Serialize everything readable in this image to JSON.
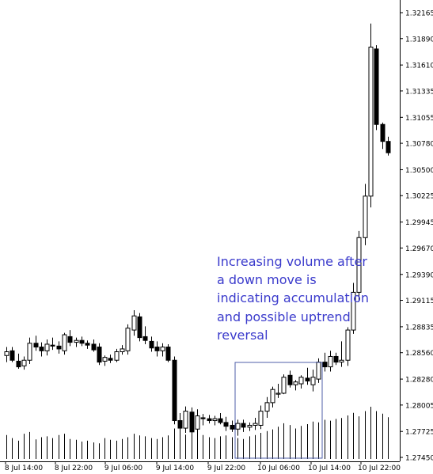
{
  "chart_data": {
    "type": "candlestick",
    "price_axis": {
      "ticks": [
        "1.32165",
        "1.31890",
        "1.31610",
        "1.31335",
        "1.31055",
        "1.30780",
        "1.30500",
        "1.30225",
        "1.29945",
        "1.29670",
        "1.29390",
        "1.29115",
        "1.28835",
        "1.28560",
        "1.28280",
        "1.28005",
        "1.27725",
        "1.27450"
      ],
      "range": [
        1.2745,
        1.32165
      ]
    },
    "time_axis": {
      "labels": [
        "8 Jul 14:00",
        "8 Jul 22:00",
        "9 Jul 06:00",
        "9 Jul 14:00",
        "9 Jul 22:00",
        "10 Jul 06:00",
        "10 Jul 14:00",
        "10 Jul 22:00"
      ]
    },
    "candles": [
      [
        1.2853,
        1.2862,
        1.2846,
        1.2857
      ],
      [
        1.2858,
        1.2862,
        1.2846,
        1.2848
      ],
      [
        1.2847,
        1.2855,
        1.2839,
        1.2841
      ],
      [
        1.2842,
        1.2852,
        1.2838,
        1.2848
      ],
      [
        1.2848,
        1.2872,
        1.2844,
        1.2866
      ],
      [
        1.2866,
        1.2874,
        1.2858,
        1.2862
      ],
      [
        1.2862,
        1.2867,
        1.2852,
        1.2858
      ],
      [
        1.2858,
        1.287,
        1.2853,
        1.2865
      ],
      [
        1.2864,
        1.2872,
        1.2859,
        1.2863
      ],
      [
        1.2863,
        1.2868,
        1.2855,
        1.286
      ],
      [
        1.2858,
        1.2877,
        1.2854,
        1.2875
      ],
      [
        1.2873,
        1.288,
        1.2863,
        1.2867
      ],
      [
        1.2867,
        1.2872,
        1.2862,
        1.2869
      ],
      [
        1.2869,
        1.2873,
        1.2863,
        1.2866
      ],
      [
        1.2866,
        1.2869,
        1.286,
        1.2864
      ],
      [
        1.2865,
        1.287,
        1.2857,
        1.2859
      ],
      [
        1.2862,
        1.2866,
        1.2843,
        1.2846
      ],
      [
        1.2847,
        1.2853,
        1.2842,
        1.2851
      ],
      [
        1.285,
        1.2854,
        1.2845,
        1.2848
      ],
      [
        1.2848,
        1.286,
        1.2846,
        1.2857
      ],
      [
        1.2857,
        1.2864,
        1.2854,
        1.286
      ],
      [
        1.2858,
        1.2886,
        1.2854,
        1.2882
      ],
      [
        1.288,
        1.2901,
        1.2874,
        1.2895
      ],
      [
        1.2894,
        1.2898,
        1.2868,
        1.2872
      ],
      [
        1.2873,
        1.2884,
        1.2865,
        1.2869
      ],
      [
        1.2868,
        1.2873,
        1.2857,
        1.2861
      ],
      [
        1.2862,
        1.2868,
        1.2852,
        1.2858
      ],
      [
        1.2858,
        1.2866,
        1.2852,
        1.2862
      ],
      [
        1.2862,
        1.2865,
        1.2846,
        1.2848
      ],
      [
        1.2848,
        1.2852,
        1.278,
        1.2784
      ],
      [
        1.2784,
        1.2792,
        1.277,
        1.2776
      ],
      [
        1.2776,
        1.2799,
        1.2771,
        1.2794
      ],
      [
        1.2793,
        1.2798,
        1.2763,
        1.2772
      ],
      [
        1.2775,
        1.2796,
        1.2768,
        1.2789
      ],
      [
        1.2787,
        1.2791,
        1.2779,
        1.2786
      ],
      [
        1.2786,
        1.279,
        1.2781,
        1.2784
      ],
      [
        1.2784,
        1.2789,
        1.2779,
        1.2786
      ],
      [
        1.2786,
        1.2792,
        1.278,
        1.2782
      ],
      [
        1.2782,
        1.2788,
        1.2773,
        1.2778
      ],
      [
        1.2779,
        1.2784,
        1.2772,
        1.2775
      ],
      [
        1.2775,
        1.2785,
        1.2768,
        1.2781
      ],
      [
        1.2781,
        1.2785,
        1.2772,
        1.2777
      ],
      [
        1.2777,
        1.2782,
        1.2773,
        1.2779
      ],
      [
        1.2779,
        1.2787,
        1.2774,
        1.2781
      ],
      [
        1.2779,
        1.28,
        1.2775,
        1.2794
      ],
      [
        1.2794,
        1.2809,
        1.2787,
        1.2803
      ],
      [
        1.2803,
        1.282,
        1.2798,
        1.2817
      ],
      [
        1.2812,
        1.2823,
        1.2808,
        1.2813
      ],
      [
        1.2813,
        1.2833,
        1.2812,
        1.283
      ],
      [
        1.2832,
        1.2837,
        1.2819,
        1.2822
      ],
      [
        1.2822,
        1.2827,
        1.2816,
        1.2825
      ],
      [
        1.2823,
        1.2832,
        1.2818,
        1.283
      ],
      [
        1.2829,
        1.284,
        1.2822,
        1.2826
      ],
      [
        1.2822,
        1.2838,
        1.2815,
        1.283
      ],
      [
        1.2828,
        1.285,
        1.2824,
        1.2846
      ],
      [
        1.2846,
        1.2856,
        1.2836,
        1.2841
      ],
      [
        1.2841,
        1.2858,
        1.2836,
        1.2852
      ],
      [
        1.2852,
        1.2856,
        1.2843,
        1.2846
      ],
      [
        1.2846,
        1.2868,
        1.2841,
        1.2848
      ],
      [
        1.2848,
        1.2883,
        1.2842,
        1.288
      ],
      [
        1.288,
        1.293,
        1.2876,
        1.292
      ],
      [
        1.292,
        1.2985,
        1.291,
        1.2978
      ],
      [
        1.2978,
        1.3035,
        1.297,
        1.3022
      ],
      [
        1.3022,
        1.3205,
        1.301,
        1.318
      ],
      [
        1.3178,
        1.3182,
        1.3092,
        1.3098
      ],
      [
        1.3098,
        1.31,
        1.3072,
        1.308
      ],
      [
        1.308,
        1.3085,
        1.3065,
        1.3068
      ]
    ],
    "volume": [
      55,
      48,
      42,
      58,
      62,
      45,
      50,
      52,
      48,
      55,
      58,
      46,
      44,
      40,
      42,
      38,
      36,
      48,
      44,
      42,
      46,
      50,
      58,
      54,
      52,
      48,
      46,
      50,
      54,
      70,
      60,
      56,
      58,
      62,
      55,
      50,
      48,
      52,
      54,
      50,
      48,
      46,
      52,
      55,
      60,
      64,
      68,
      74,
      82,
      78,
      70,
      76,
      80,
      86,
      84,
      90,
      88,
      92,
      94,
      100,
      106,
      98,
      110,
      120,
      110,
      104,
      96
    ],
    "annotation": "Increasing volume after a down move is indicating accumulation and possible uptrend reversal"
  }
}
